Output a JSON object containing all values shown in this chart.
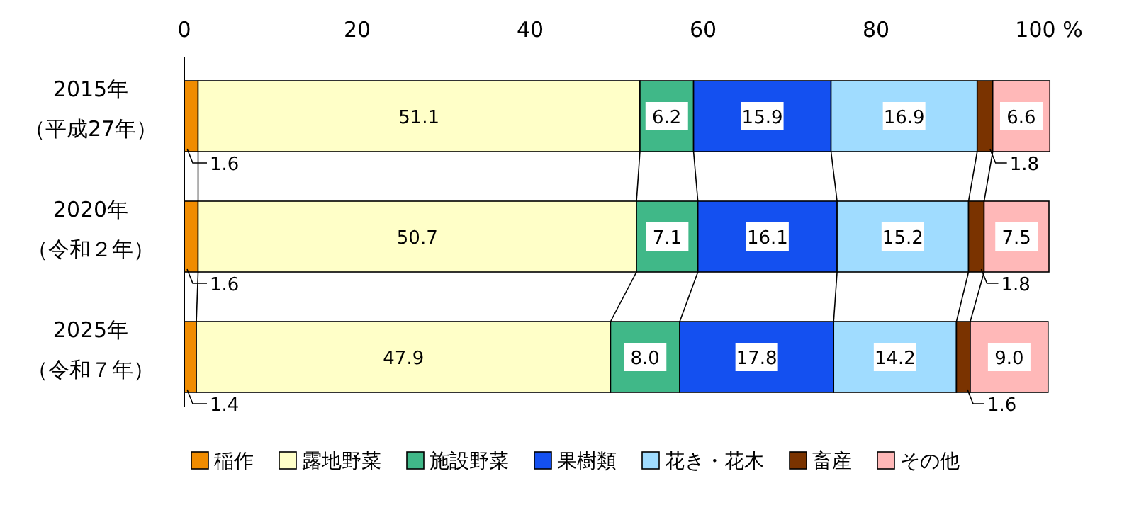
{
  "chart_data": {
    "type": "bar",
    "orientation": "horizontal",
    "stacked": true,
    "data_labels": true,
    "legend": "bottom",
    "grid": false,
    "categories": [
      "2015年（平成27年）",
      "2020年（令和２年）",
      "2025年（令和７年）"
    ],
    "xlim": [
      0,
      100
    ],
    "xticks": [
      0,
      20,
      40,
      60,
      80,
      {
        "value": 100,
        "label": "100 %"
      }
    ],
    "series": [
      {
        "name": "稲作",
        "color": "#f08c00",
        "values": [
          1.6,
          1.6,
          1.4
        ]
      },
      {
        "name": "露地野菜",
        "color": "#ffffc8",
        "values": [
          51.1,
          50.7,
          47.9
        ]
      },
      {
        "name": "施設野菜",
        "color": "#40b888",
        "values": [
          6.2,
          7.1,
          8.0
        ],
        "value_labels": [
          "6.2",
          "7.1",
          "8.0"
        ]
      },
      {
        "name": "果樹類",
        "color": "#1450f0",
        "values": [
          15.9,
          16.1,
          17.8
        ]
      },
      {
        "name": "花き・花木",
        "color": "#a0dcff",
        "values": [
          16.9,
          15.2,
          14.2
        ]
      },
      {
        "name": "畜産",
        "color": "#7a3300",
        "values": [
          1.8,
          1.8,
          1.6
        ]
      },
      {
        "name": "その他",
        "color": "#ffb8b8",
        "values": [
          6.6,
          7.5,
          9.0
        ],
        "value_labels": [
          "6.6",
          "7.5",
          "9.0"
        ]
      }
    ]
  }
}
